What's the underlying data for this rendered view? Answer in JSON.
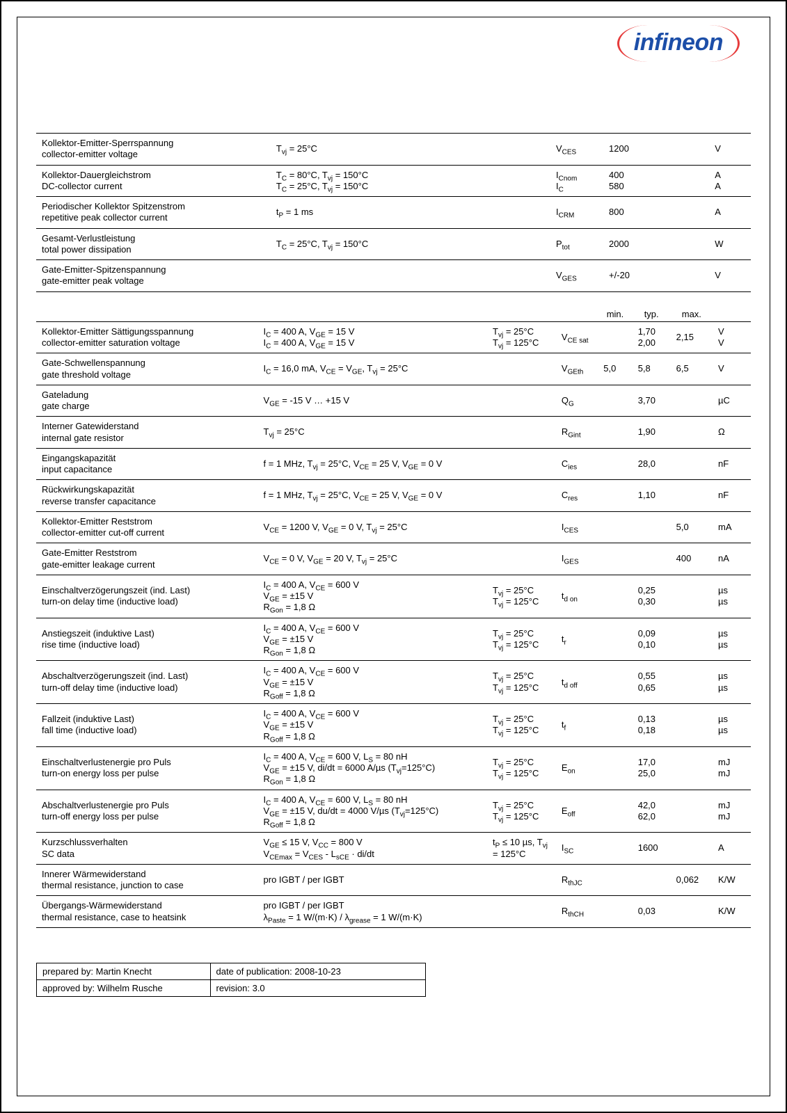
{
  "brand": "infineon",
  "colors": {
    "logo_text": "#1c4ea8",
    "logo_bracket": "#e63b3b"
  },
  "table1": {
    "rows": [
      {
        "de": "Kollektor-Emitter-Sperrspannung",
        "en": "collector-emitter voltage",
        "cond1": "T₍vj₎ = 25°C",
        "cond2": "",
        "sym": "V",
        "symsub": "CES",
        "val": "1200",
        "unit": "V"
      },
      {
        "de": "Kollektor-Dauergleichstrom",
        "en": "DC-collector current",
        "cond1": "T_C = 80°C, T₍vj₎ = 150°C",
        "cond2": "T_C = 25°C, T₍vj₎ = 150°C",
        "sym": "I",
        "symsub": "Cnom",
        "sym2": "I",
        "sym2sub": "C",
        "val": "400",
        "val2": "580",
        "unit": "A",
        "unit2": "A"
      },
      {
        "de": "Periodischer Kollektor Spitzenstrom",
        "en": "repetitive peak collector current",
        "cond1": "t_P = 1 ms",
        "cond2": "",
        "sym": "I",
        "symsub": "CRM",
        "val": "800",
        "unit": "A"
      },
      {
        "de": "Gesamt-Verlustleistung",
        "en": "total power dissipation",
        "cond1": "T_C = 25°C, T₍vj₎ = 150°C",
        "cond2": "",
        "sym": "P",
        "symsub": "tot",
        "val": "2000",
        "unit": "W"
      },
      {
        "de": "Gate-Emitter-Spitzenspannung",
        "en": "gate-emitter peak voltage",
        "cond1": "",
        "cond2": "",
        "sym": "V",
        "symsub": "GES",
        "val": "+/-20",
        "unit": "V"
      }
    ]
  },
  "table2": {
    "head": {
      "min": "min.",
      "typ": "typ.",
      "max": "max."
    },
    "rows": [
      {
        "de": "Kollektor-Emitter Sättigungsspannung",
        "en": "collector-emitter saturation voltage",
        "cond1": "I_C = 400 A, V_GE = 15 V",
        "cond2": "I_C = 400 A, V_GE = 15 V",
        "temp1": "T₍vj₎ = 25°C",
        "temp2": "T₍vj₎ = 125°C",
        "sym": "V",
        "symsub": "CE sat",
        "min": "",
        "typ": "1,70",
        "typ2": "2,00",
        "max": "2,15",
        "unit": "V",
        "unit2": "V"
      },
      {
        "de": "Gate-Schwellenspannung",
        "en": "gate threshold voltage",
        "cond1": "I_C = 16,0 mA, V_CE = V_GE, T₍vj₎ = 25°C",
        "sym": "V",
        "symsub": "GEth",
        "min": "5,0",
        "typ": "5,8",
        "max": "6,5",
        "unit": "V"
      },
      {
        "de": "Gateladung",
        "en": "gate charge",
        "cond1": "V_GE = -15 V … +15 V",
        "sym": "Q",
        "symsub": "G",
        "min": "",
        "typ": "3,70",
        "max": "",
        "unit": "µC"
      },
      {
        "de": "Interner Gatewiderstand",
        "en": "internal gate resistor",
        "cond1": "T₍vj₎ = 25°C",
        "sym": "R",
        "symsub": "Gint",
        "min": "",
        "typ": "1,90",
        "max": "",
        "unit": "Ω"
      },
      {
        "de": "Eingangskapazität",
        "en": "input capacitance",
        "cond1": "f = 1 MHz, T₍vj₎ = 25°C, V_CE = 25 V, V_GE = 0 V",
        "sym": "C",
        "symsub": "ies",
        "min": "",
        "typ": "28,0",
        "max": "",
        "unit": "nF"
      },
      {
        "de": "Rückwirkungskapazität",
        "en": "reverse transfer capacitance",
        "cond1": "f = 1 MHz, T₍vj₎ = 25°C, V_CE = 25 V, V_GE = 0 V",
        "sym": "C",
        "symsub": "res",
        "min": "",
        "typ": "1,10",
        "max": "",
        "unit": "nF"
      },
      {
        "de": "Kollektor-Emitter Reststrom",
        "en": "collector-emitter cut-off current",
        "cond1": "V_CE = 1200 V, V_GE = 0 V, T₍vj₎ = 25°C",
        "sym": "I",
        "symsub": "CES",
        "min": "",
        "typ": "",
        "max": "5,0",
        "unit": "mA"
      },
      {
        "de": "Gate-Emitter Reststrom",
        "en": "gate-emitter leakage current",
        "cond1": "V_CE = 0 V, V_GE = 20 V, T₍vj₎ = 25°C",
        "sym": "I",
        "symsub": "GES",
        "min": "",
        "typ": "",
        "max": "400",
        "unit": "nA"
      },
      {
        "de": "Einschaltverzögerungszeit (ind. Last)",
        "en": "turn-on delay time (inductive load)",
        "cond1": "I_C = 400 A, V_CE = 600 V",
        "cond2": "V_GE = ±15 V",
        "cond3": "R_Gon = 1,8 Ω",
        "temp1": "T₍vj₎ = 25°C",
        "temp2": "T₍vj₎ = 125°C",
        "sym": "t",
        "symsub": "d on",
        "min": "",
        "typ": "0,25",
        "typ2": "0,30",
        "max": "",
        "unit": "µs",
        "unit2": "µs"
      },
      {
        "de": "Anstiegszeit (induktive Last)",
        "en": "rise time (inductive load)",
        "cond1": "I_C = 400 A, V_CE = 600 V",
        "cond2": "V_GE = ±15 V",
        "cond3": "R_Gon = 1,8 Ω",
        "temp1": "T₍vj₎ = 25°C",
        "temp2": "T₍vj₎ = 125°C",
        "sym": "t",
        "symsub": "r",
        "min": "",
        "typ": "0,09",
        "typ2": "0,10",
        "max": "",
        "unit": "µs",
        "unit2": "µs"
      },
      {
        "de": "Abschaltverzögerungszeit (ind. Last)",
        "en": "turn-off delay time (inductive load)",
        "cond1": "I_C = 400 A, V_CE = 600 V",
        "cond2": "V_GE = ±15 V",
        "cond3": "R_Goff = 1,8 Ω",
        "temp1": "T₍vj₎ = 25°C",
        "temp2": "T₍vj₎ = 125°C",
        "sym": "t",
        "symsub": "d off",
        "min": "",
        "typ": "0,55",
        "typ2": "0,65",
        "max": "",
        "unit": "µs",
        "unit2": "µs"
      },
      {
        "de": "Fallzeit (induktive Last)",
        "en": "fall time (inductive load)",
        "cond1": "I_C = 400 A, V_CE = 600 V",
        "cond2": "V_GE = ±15 V",
        "cond3": "R_Goff = 1,8 Ω",
        "temp1": "T₍vj₎ = 25°C",
        "temp2": "T₍vj₎ = 125°C",
        "sym": "t",
        "symsub": "f",
        "min": "",
        "typ": "0,13",
        "typ2": "0,18",
        "max": "",
        "unit": "µs",
        "unit2": "µs"
      },
      {
        "de": "Einschaltverlustenergie pro Puls",
        "en": "turn-on energy loss per pulse",
        "cond1": "I_C = 400 A, V_CE = 600 V, L_S = 80 nH",
        "cond2": "V_GE = ±15 V, di/dt = 6000 A/µs (T₍vj₎=125°C)",
        "cond3": "R_Gon = 1,8 Ω",
        "temp1": "T₍vj₎ = 25°C",
        "temp2": "T₍vj₎ = 125°C",
        "sym": "E",
        "symsub": "on",
        "min": "",
        "typ": "17,0",
        "typ2": "25,0",
        "max": "",
        "unit": "mJ",
        "unit2": "mJ"
      },
      {
        "de": "Abschaltverlustenergie pro Puls",
        "en": "turn-off energy loss per pulse",
        "cond1": "I_C = 400 A, V_CE = 600 V, L_S = 80 nH",
        "cond2": "V_GE = ±15 V, du/dt = 4000 V/µs (T₍vj₎=125°C)",
        "cond3": "R_Goff = 1,8 Ω",
        "temp1": "T₍vj₎ = 25°C",
        "temp2": "T₍vj₎ = 125°C",
        "sym": "E",
        "symsub": "off",
        "min": "",
        "typ": "42,0",
        "typ2": "62,0",
        "max": "",
        "unit": "mJ",
        "unit2": "mJ"
      },
      {
        "de": "Kurzschlussverhalten",
        "en": "SC data",
        "cond1": "V_GE ≤ 15 V, V_CC = 800 V",
        "cond2": "V_CEmax = V_CES - L_sCE · di/dt",
        "temp1": "t_P ≤ 10 µs, T₍vj₎ = 125°C",
        "sym": "I",
        "symsub": "SC",
        "min": "",
        "typ": "1600",
        "max": "",
        "unit": "A"
      },
      {
        "de": "Innerer Wärmewiderstand",
        "en": "thermal resistance, junction to case",
        "cond1": "pro IGBT / per IGBT",
        "sym": "R",
        "symsub": "thJC",
        "min": "",
        "typ": "",
        "max": "0,062",
        "unit": "K/W"
      },
      {
        "de": "Übergangs-Wärmewiderstand",
        "en": "thermal resistance, case to heatsink",
        "cond1": "pro IGBT / per IGBT",
        "cond2": "λ_Paste = 1 W/(m·K)  /  λ_grease = 1 W/(m·K)",
        "sym": "R",
        "symsub": "thCH",
        "min": "",
        "typ": "0,03",
        "max": "",
        "unit": "K/W"
      }
    ]
  },
  "footer": {
    "prepared_label": "prepared by:",
    "prepared_val": "Martin Knecht",
    "date_label": "date of publication:",
    "date_val": "2008-10-23",
    "approved_label": "approved by:",
    "approved_val": "Wilhelm Rusche",
    "rev_label": "revision:",
    "rev_val": "3.0"
  }
}
